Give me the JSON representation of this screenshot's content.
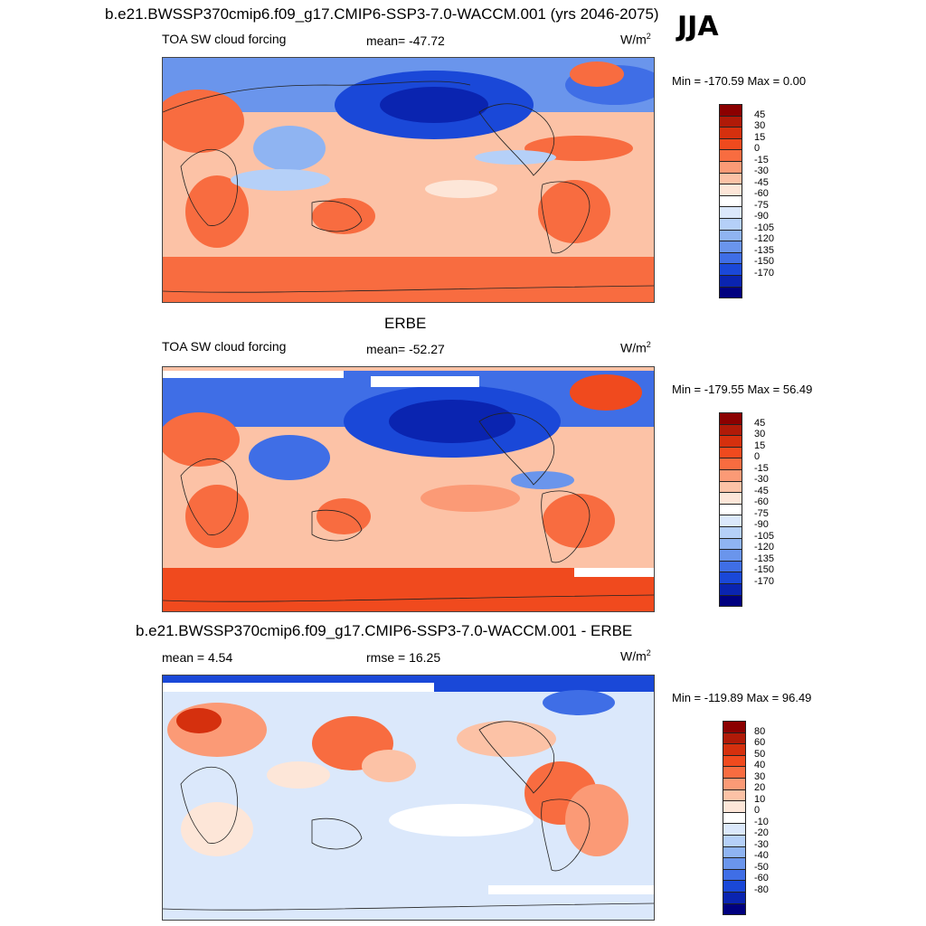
{
  "figure": {
    "title": "b.e21.BWSSP370cmip6.f09_g17.CMIP6-SSP3-7.0-WACCM.001 (yrs 2046-2075)",
    "season": "JJA"
  },
  "panels": [
    {
      "left_label": "TOA SW cloud forcing",
      "center_label": "mean= -47.72",
      "units": "W/m",
      "units_sup": "2",
      "minmax": "Min = -170.59 Max =   0.00",
      "scale": "base"
    },
    {
      "title": "ERBE",
      "left_label": "TOA SW cloud forcing",
      "center_label": "mean= -52.27",
      "units": "W/m",
      "units_sup": "2",
      "minmax": "Min = -179.55 Max =  56.49",
      "scale": "base"
    },
    {
      "title": "b.e21.BWSSP370cmip6.f09_g17.CMIP6-SSP3-7.0-WACCM.001 - ERBE",
      "left_label": "mean =   4.54",
      "center_label": "rmse =  16.25",
      "units": "W/m",
      "units_sup": "2",
      "minmax": "Min = -119.89 Max =  96.49",
      "scale": "diff"
    }
  ],
  "colorbars": {
    "base": {
      "levels": [
        "45",
        "30",
        "15",
        "0",
        "-15",
        "-30",
        "-45",
        "-60",
        "-75",
        "-90",
        "-105",
        "-120",
        "-135",
        "-150",
        "-170"
      ],
      "colors": [
        "#8b0000",
        "#b01a08",
        "#d5300e",
        "#f04a1e",
        "#f86c40",
        "#fb9a76",
        "#fcc2a6",
        "#fde6d8",
        "#ffffff",
        "#dbe8fb",
        "#b5d0f8",
        "#8fb4f2",
        "#6a95ec",
        "#3f6ee6",
        "#1a48d8",
        "#0a24b0",
        "#00007f"
      ]
    },
    "diff": {
      "levels": [
        "80",
        "60",
        "50",
        "40",
        "30",
        "20",
        "10",
        "0",
        "-10",
        "-20",
        "-30",
        "-40",
        "-50",
        "-60",
        "-80"
      ],
      "colors": [
        "#8b0000",
        "#b01a08",
        "#d5300e",
        "#f04a1e",
        "#f86c40",
        "#fb9a76",
        "#fcc2a6",
        "#fde6d8",
        "#ffffff",
        "#dbe8fb",
        "#b5d0f8",
        "#8fb4f2",
        "#6a95ec",
        "#3f6ee6",
        "#1a48d8",
        "#0a24b0",
        "#00007f"
      ]
    }
  }
}
